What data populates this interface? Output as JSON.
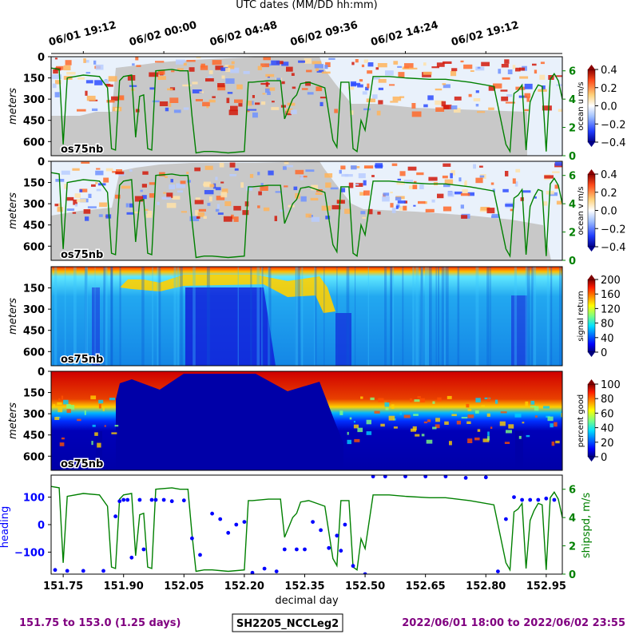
{
  "top_title": "UTC dates (MM/DD hh:mm)",
  "utc_ticks": [
    "06/01 19:12",
    "06/02 00:00",
    "06/02 04:48",
    "06/02 09:36",
    "06/02 14:24",
    "06/02 19:12"
  ],
  "panel_label": "os75nb",
  "colors": {
    "shipspd": "#008000",
    "heading": "#0000ff",
    "footer": "#800080",
    "nodata": "#c8c8c8"
  },
  "footer": {
    "left": "151.75 to 153.0 (1.25 days)",
    "center": "SH2205_NCCLeg2",
    "right": "2022/06/01 18:00 to 2022/06/02 23:55"
  },
  "chart_data": [
    {
      "type": "heatmap",
      "panel": "ocean u",
      "ylabel": "meters",
      "yticks": [
        "0",
        "150",
        "300",
        "450",
        "600"
      ],
      "ylim": [
        700,
        0
      ],
      "colorbar_label": "ocean u m/s",
      "colorbar_ticks": [
        "0.4",
        "0.2",
        "0.0",
        "−0.2",
        "−0.4"
      ],
      "colormap": "seismic (blue-white-red)",
      "overlay_axis_ticks": [
        "6",
        "4",
        "2",
        "0"
      ],
      "overlay_series": "ship speed m/s"
    },
    {
      "type": "heatmap",
      "panel": "ocean v",
      "ylabel": "meters",
      "yticks": [
        "0",
        "150",
        "300",
        "450",
        "600"
      ],
      "ylim": [
        700,
        0
      ],
      "colorbar_label": "ocean v m/s",
      "colorbar_ticks": [
        "0.4",
        "0.2",
        "0.0",
        "−0.2",
        "−0.4"
      ],
      "colormap": "seismic (blue-white-red)",
      "overlay_axis_ticks": [
        "6",
        "4",
        "2",
        "0"
      ],
      "overlay_series": "ship speed m/s"
    },
    {
      "type": "heatmap",
      "panel": "signal return",
      "ylabel": "meters",
      "yticks": [
        "150",
        "300",
        "450",
        "600"
      ],
      "colorbar_label": "signal return",
      "colorbar_ticks": [
        "200",
        "160",
        "120",
        "80",
        "40",
        "0"
      ],
      "colormap": "jet"
    },
    {
      "type": "heatmap",
      "panel": "percent good",
      "ylabel": "meters",
      "yticks": [
        "0",
        "150",
        "300",
        "450",
        "600"
      ],
      "colorbar_label": "percent good",
      "colorbar_ticks": [
        "100",
        "80",
        "60",
        "40",
        "20",
        "0"
      ],
      "colormap": "jet"
    },
    {
      "type": "line",
      "panel": "heading / ship speed",
      "xlabel": "decimal day",
      "xlim": [
        151.72,
        152.99
      ],
      "xticks": [
        "151.75",
        "151.90",
        "152.05",
        "152.20",
        "152.35",
        "152.50",
        "152.65",
        "152.80",
        "152.95"
      ],
      "ylabel": "heading",
      "ylabel_right": "shipspd, m/s",
      "yticks_left": [
        "100",
        "0",
        "−100"
      ],
      "yticks_right": [
        "6",
        "4",
        "2",
        "0"
      ],
      "ylim_left": [
        -180,
        180
      ],
      "ylim_right": [
        0,
        7
      ],
      "series": [
        {
          "name": "shipspd, m/s",
          "x": [
            151.72,
            151.74,
            151.75,
            151.76,
            151.8,
            151.84,
            151.86,
            151.87,
            151.88,
            151.89,
            151.9,
            151.92,
            151.93,
            151.94,
            151.95,
            151.96,
            151.97,
            151.98,
            152.02,
            152.04,
            152.06,
            152.07,
            152.08,
            152.1,
            152.12,
            152.16,
            152.2,
            152.21,
            152.22,
            152.26,
            152.29,
            152.3,
            152.32,
            152.33,
            152.34,
            152.36,
            152.38,
            152.4,
            152.42,
            152.43,
            152.44,
            152.46,
            152.47,
            152.48,
            152.49,
            152.5,
            152.52,
            152.56,
            152.6,
            152.66,
            152.7,
            152.76,
            152.82,
            152.85,
            152.86,
            152.87,
            152.88,
            152.89,
            152.9,
            152.91,
            152.92,
            152.93,
            152.94,
            152.95,
            152.96,
            152.97,
            152.98,
            152.99
          ],
          "values": [
            6.2,
            6.1,
            0.8,
            5.5,
            5.7,
            5.6,
            4.8,
            0.5,
            0.4,
            5.3,
            5.6,
            5.7,
            1.3,
            4.2,
            4.3,
            0.5,
            0.4,
            6.0,
            6.1,
            6.0,
            6.0,
            2.8,
            0.2,
            0.3,
            0.3,
            0.2,
            0.3,
            5.2,
            5.2,
            5.3,
            5.3,
            2.6,
            4.0,
            4.3,
            5.1,
            5.2,
            5.0,
            4.8,
            1.1,
            0.6,
            5.2,
            5.2,
            0.5,
            0.3,
            2.5,
            1.8,
            5.6,
            5.6,
            5.5,
            5.4,
            5.4,
            5.2,
            4.9,
            0.8,
            0.3,
            4.4,
            4.6,
            5.0,
            0.4,
            3.8,
            4.5,
            5.0,
            4.9,
            0.3,
            5.4,
            5.8,
            5.3,
            4.0
          ]
        },
        {
          "name": "heading",
          "x": [
            151.73,
            151.76,
            151.8,
            151.85,
            151.88,
            151.89,
            151.9,
            151.91,
            151.92,
            151.94,
            151.95,
            151.97,
            151.98,
            152.0,
            152.02,
            152.05,
            152.07,
            152.09,
            152.12,
            152.14,
            152.16,
            152.18,
            152.2,
            152.22,
            152.25,
            152.28,
            152.3,
            152.33,
            152.35,
            152.37,
            152.39,
            152.41,
            152.43,
            152.44,
            152.45,
            152.47,
            152.5,
            152.52,
            152.55,
            152.6,
            152.65,
            152.7,
            152.75,
            152.8,
            152.83,
            152.85,
            152.87,
            152.89,
            152.91,
            152.93,
            152.95,
            152.97
          ],
          "values": [
            -165,
            -168,
            -168,
            -168,
            30,
            85,
            90,
            90,
            -120,
            90,
            -90,
            90,
            90,
            90,
            85,
            88,
            -50,
            -110,
            40,
            20,
            -30,
            0,
            10,
            -175,
            -160,
            -170,
            -90,
            -90,
            -90,
            10,
            -20,
            -85,
            -40,
            -95,
            0,
            -150,
            -180,
            175,
            175,
            175,
            175,
            175,
            170,
            172,
            -170,
            20,
            100,
            90,
            90,
            90,
            95,
            90
          ]
        }
      ]
    }
  ]
}
